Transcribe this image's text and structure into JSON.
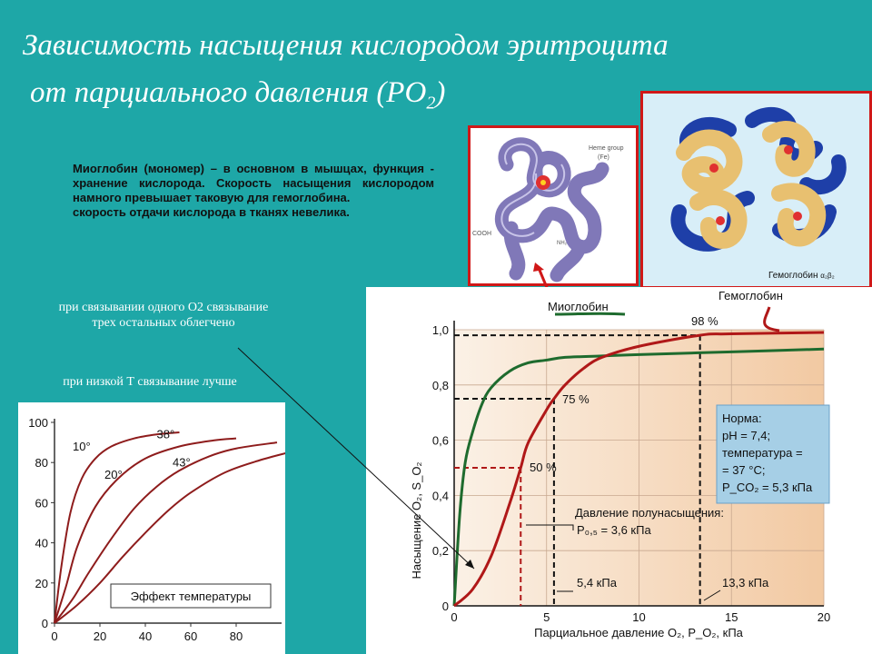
{
  "title": {
    "line1": "Зависимость насыщения кислородом эритроцита",
    "line2_main": "от парциального давления (PO",
    "line2_sub": "2",
    "line2_end": ")"
  },
  "description": [
    "Миоглобин (мономер) – в основном в мышцах, функция - хранение кислорода. Скорость насыщения кислородом намного превышает таковую для гемоглобина.",
    "скорость отдачи кислорода в тканях невелика."
  ],
  "notes": {
    "binding": "при связывании одного О2 связывание трех остальных облегчено",
    "temperature": "при низкой Т связывание лучше"
  },
  "hemoglobin_image": {
    "caption_main": "Гемоглобин ",
    "caption_formula": "α₂β₂"
  },
  "myoglobin_image": {
    "heme_label": "Heme group",
    "fe_label": "(Fe)",
    "cooh": "COOH",
    "nh": "NH₂"
  },
  "colors": {
    "background": "#1ea7a7",
    "myoglobin": "#1e6b2e",
    "hemoglobin": "#b01818",
    "info_box": "#a6cfe6"
  },
  "chart_data": [
    {
      "type": "line",
      "xlabel": "Парциальное давление O₂, P_O₂, кПа",
      "ylabel": "Насыщение O₂, S_O₂",
      "xlim": [
        0,
        20
      ],
      "ylim": [
        0,
        1.0
      ],
      "x_ticks": [
        "0",
        "5",
        "10",
        "15",
        "20"
      ],
      "y_ticks": [
        "0",
        "0,2",
        "0,4",
        "0,6",
        "0,8",
        "1,0"
      ],
      "series": [
        {
          "name": "Миоглобин",
          "x": [
            0,
            0.3,
            0.6,
            1,
            1.5,
            2,
            3,
            4,
            5,
            6,
            8,
            10,
            15,
            20
          ],
          "y": [
            0,
            0.33,
            0.52,
            0.63,
            0.73,
            0.79,
            0.85,
            0.88,
            0.89,
            0.9,
            0.905,
            0.91,
            0.92,
            0.93
          ]
        },
        {
          "name": "Гемоглобин",
          "x": [
            0,
            1,
            2,
            3,
            3.6,
            4,
            5,
            5.4,
            6,
            7,
            8,
            10,
            13.3,
            15,
            20
          ],
          "y": [
            0,
            0.06,
            0.18,
            0.37,
            0.5,
            0.59,
            0.71,
            0.75,
            0.8,
            0.86,
            0.9,
            0.94,
            0.98,
            0.985,
            0.99
          ]
        }
      ],
      "annotations": {
        "p98": "98 %",
        "p75": "75 %",
        "p50": "50 %",
        "half_title": "Давление полунасыщения:",
        "half_value": "P₀,₅ = 3,6 кПа",
        "kpa54": "5,4 кПа",
        "kpa133": "13,3 кПа"
      },
      "norm_box": [
        "Норма:",
        "pH = 7,4;",
        "температура =",
        "= 37 °C;",
        "P_CO₂ = 5,3 кПа"
      ]
    },
    {
      "type": "line",
      "title": "Эффект температуры",
      "xlim": [
        0,
        100
      ],
      "ylim": [
        0,
        100
      ],
      "x_ticks": [
        "0",
        "20",
        "40",
        "60",
        "80"
      ],
      "y_ticks": [
        "0",
        "20",
        "40",
        "60",
        "80",
        "100"
      ],
      "series": [
        {
          "name": "10°",
          "x": [
            0,
            3,
            7,
            12,
            18,
            25,
            35,
            45,
            55
          ],
          "y": [
            0,
            28,
            55,
            72,
            82,
            88,
            92,
            94,
            95
          ]
        },
        {
          "name": "20°",
          "x": [
            0,
            5,
            10,
            18,
            28,
            40,
            55,
            70,
            80
          ],
          "y": [
            0,
            18,
            38,
            58,
            72,
            82,
            88,
            91,
            92
          ]
        },
        {
          "name": "38°",
          "x": [
            0,
            8,
            15,
            25,
            35,
            45,
            55,
            68,
            80,
            98
          ],
          "y": [
            0,
            12,
            25,
            42,
            57,
            68,
            76,
            83,
            87,
            90
          ]
        },
        {
          "name": "43°",
          "x": [
            0,
            10,
            20,
            30,
            40,
            50,
            60,
            75,
            90,
            103
          ],
          "y": [
            0,
            9,
            20,
            33,
            45,
            56,
            65,
            75,
            81,
            85
          ]
        }
      ]
    }
  ]
}
